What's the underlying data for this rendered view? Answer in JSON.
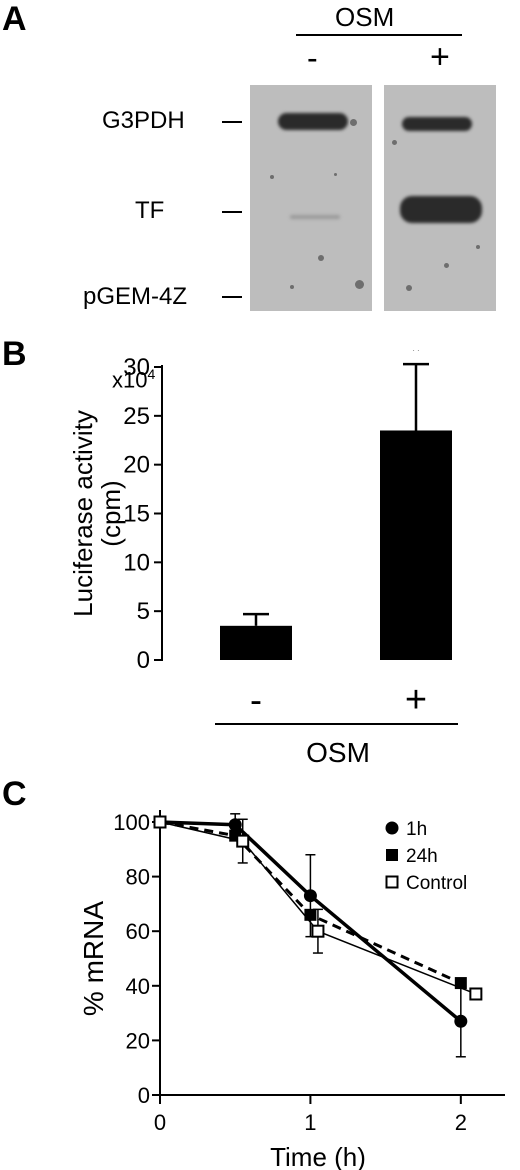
{
  "panel_a": {
    "letter": "A",
    "treatment": "OSM",
    "lane_labels": [
      "-",
      "+"
    ],
    "row_labels": [
      "G3PDH",
      "TF",
      "pGEM-4Z"
    ]
  },
  "panel_b": {
    "letter": "B",
    "multiplier": "x10",
    "multiplier_exp": "4",
    "significance": "*",
    "xaxis_label": "OSM"
  },
  "panel_c": {
    "letter": "C"
  },
  "chart_data": [
    {
      "type": "bar",
      "categories": [
        "-",
        "+"
      ],
      "values": [
        3.5,
        23.5
      ],
      "error": [
        1.2,
        6.8
      ],
      "ylabel": "Luciferase activity (cpm)",
      "xlabel": "OSM",
      "ylim": [
        0,
        30
      ],
      "yticks": [
        0,
        5,
        10,
        15,
        20,
        25,
        30
      ],
      "y_multiplier": "x10^4",
      "annotations": [
        "*"
      ]
    },
    {
      "type": "line",
      "xlabel": "Time (h)",
      "ylabel": "% mRNA",
      "xlim": [
        0,
        2
      ],
      "ylim": [
        0,
        100
      ],
      "xticks": [
        0,
        1,
        2
      ],
      "yticks": [
        0,
        20,
        40,
        60,
        80,
        100
      ],
      "legend_position": "top-right",
      "series": [
        {
          "name": "1h",
          "marker": "filled-circle",
          "line": "thick-solid",
          "x": [
            0,
            0.5,
            1,
            2
          ],
          "y": [
            100,
            99,
            73,
            27
          ],
          "error": [
            0,
            4,
            15,
            13
          ]
        },
        {
          "name": "24h",
          "marker": "filled-square",
          "line": "dashed",
          "x": [
            0,
            0.5,
            1,
            2
          ],
          "y": [
            100,
            95,
            66,
            41
          ],
          "error": [
            0,
            0,
            0,
            0
          ]
        },
        {
          "name": "Control",
          "marker": "open-square",
          "line": "thin-solid",
          "x": [
            0,
            0.55,
            1.05,
            2.1
          ],
          "y": [
            100,
            93,
            60,
            37
          ],
          "error": [
            0,
            8,
            8,
            0
          ]
        }
      ]
    }
  ]
}
